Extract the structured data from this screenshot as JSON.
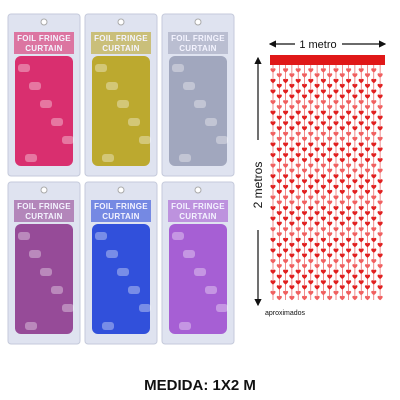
{
  "package_label": {
    "line1": "FOIL FRINGE",
    "line2": "CURTAIN"
  },
  "width_label": "1 metro",
  "height_label": "2 metros",
  "note": "aproximados",
  "caption": "MEDIDA: 1X2 M"
}
